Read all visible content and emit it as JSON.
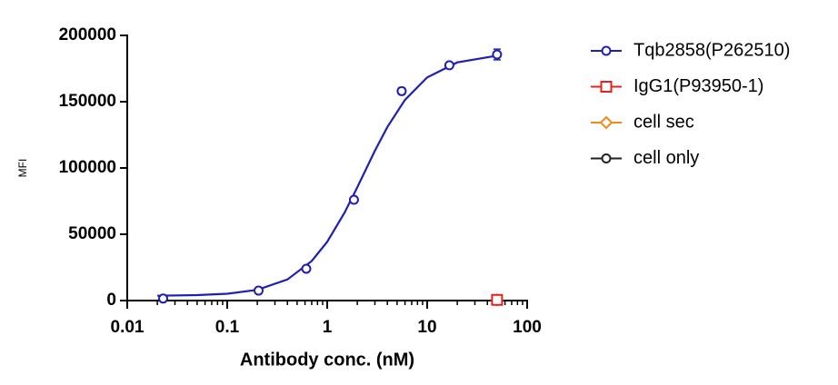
{
  "chart_data": {
    "type": "scatter",
    "x_label": "Antibody conc. (nM)",
    "y_label": "MFI",
    "xlim": [
      0.01,
      100
    ],
    "xticks": [
      0.01,
      0.1,
      1,
      10,
      100
    ],
    "log_x": true,
    "ylim": [
      0,
      200000
    ],
    "yticks": [
      0,
      50000,
      100000,
      150000,
      200000
    ],
    "legend": "right",
    "series": [
      {
        "name": "Tqb2858(P262510)",
        "color": "#1f1fb4",
        "marker": "circle",
        "x": [
          0.02286,
          0.2058,
          0.6173,
          1.852,
          5.556,
          16.67,
          50
        ],
        "values": [
          1500,
          7500,
          24000,
          76000,
          158000,
          177500,
          185600
        ],
        "errors": [
          500,
          1000,
          1500,
          2000,
          2500,
          2000,
          4000
        ]
      },
      {
        "name": "IgG1(P93950-1)",
        "color": "#e8201c",
        "marker": "square",
        "x": [
          50
        ],
        "values": [
          500
        ]
      },
      {
        "name": "cell sec",
        "color": "#f28a1a",
        "marker": "diamond",
        "x": [
          50
        ],
        "values": [
          500
        ]
      },
      {
        "name": "cell only",
        "color": "#222222",
        "marker": "circle",
        "x": [
          50
        ],
        "values": [
          500
        ]
      }
    ],
    "fit": {
      "color": "#1f1fb4",
      "x": [
        0.02,
        0.05,
        0.1,
        0.2,
        0.4,
        0.7,
        1,
        1.5,
        2,
        3,
        4,
        6,
        10,
        20,
        50
      ],
      "values": [
        3650,
        4085,
        5144,
        8075,
        15873,
        29808,
        44275,
        66625,
        85453,
        113015,
        130937,
        151403,
        168320,
        179640,
        184712
      ]
    }
  }
}
